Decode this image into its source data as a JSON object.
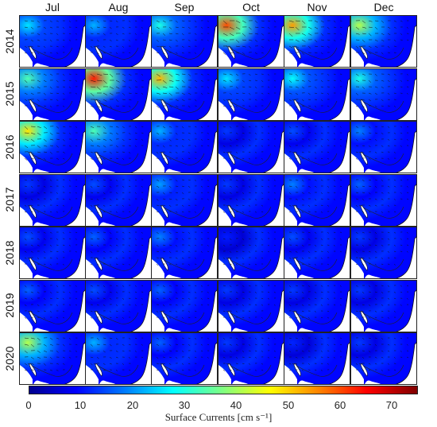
{
  "months": [
    "Jul",
    "Aug",
    "Sep",
    "Oct",
    "Nov",
    "Dec"
  ],
  "years": [
    "2014",
    "2015",
    "2016",
    "2017",
    "2018",
    "2019",
    "2020"
  ],
  "colorbar": {
    "ticks": [
      "0",
      "10",
      "20",
      "30",
      "40",
      "50",
      "60",
      "70"
    ],
    "range": [
      0,
      75
    ],
    "label": "Surface Currents [cm s⁻¹]",
    "colormap": "jet"
  },
  "peak_intensity": [
    [
      0.35,
      0.3,
      0.4,
      0.8,
      0.72,
      0.55
    ],
    [
      0.45,
      0.85,
      0.7,
      0.35,
      0.38,
      0.4
    ],
    [
      0.65,
      0.45,
      0.3,
      0.18,
      0.2,
      0.25
    ],
    [
      0.18,
      0.2,
      0.28,
      0.18,
      0.25,
      0.22
    ],
    [
      0.2,
      0.22,
      0.25,
      0.15,
      0.2,
      0.18
    ],
    [
      0.22,
      0.2,
      0.22,
      0.18,
      0.18,
      0.18
    ],
    [
      0.55,
      0.3,
      0.22,
      0.18,
      0.16,
      0.18
    ]
  ]
}
